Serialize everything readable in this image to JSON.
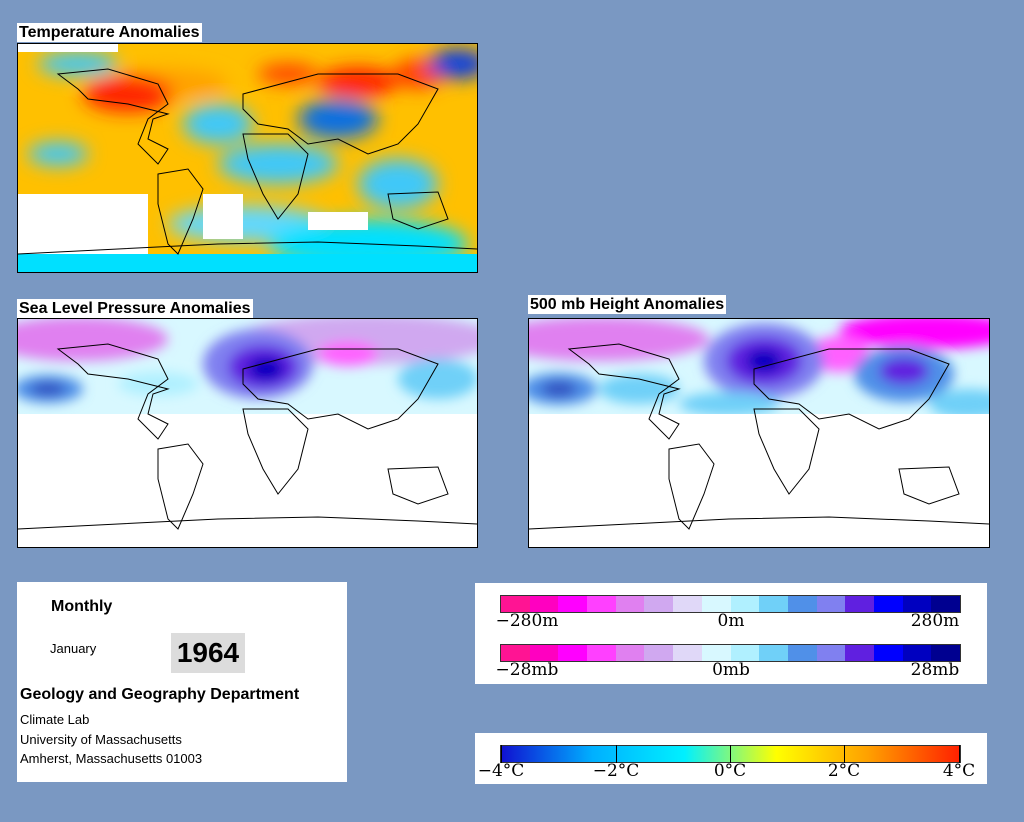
{
  "panels": {
    "temperature": {
      "title": "Temperature Anomalies"
    },
    "slp": {
      "title": "Sea Level Pressure Anomalies"
    },
    "height500": {
      "title": "500 mb Height Anomalies"
    }
  },
  "info": {
    "period": "Monthly",
    "month": "January",
    "year": "1964",
    "department": "Geology and Geography Department",
    "lab": "Climate Lab",
    "university": "University of Massachusetts",
    "address": "Amherst, Massachusetts 01003"
  },
  "legends": {
    "height": {
      "labels": [
        "−280m",
        "0m",
        "280m"
      ],
      "colors": [
        "#ff1493",
        "#ff00c0",
        "#ff00ff",
        "#ff40ff",
        "#e080f0",
        "#d0a8f0",
        "#e0d8f8",
        "#d8f8ff",
        "#b0f0ff",
        "#70d0f8",
        "#5090e8",
        "#8080f0",
        "#6020e0",
        "#0000ff",
        "#0000c0",
        "#000090"
      ]
    },
    "pressure": {
      "labels": [
        "−28mb",
        "0mb",
        "28mb"
      ],
      "colors": [
        "#ff1493",
        "#ff00c0",
        "#ff00ff",
        "#ff40ff",
        "#e080f0",
        "#d0a8f0",
        "#e0d8f8",
        "#d8f8ff",
        "#b0f0ff",
        "#70d0f8",
        "#5090e8",
        "#8080f0",
        "#6020e0",
        "#0000ff",
        "#0000c0",
        "#000090"
      ]
    },
    "temperature": {
      "labels": [
        "−4°C",
        "−2°C",
        "0°C",
        "2°C",
        "4°C"
      ],
      "gradient": [
        "#1010d0",
        "#00b0ff",
        "#00f0ff",
        "#ffff00",
        "#ffa000",
        "#ff2000"
      ]
    }
  }
}
